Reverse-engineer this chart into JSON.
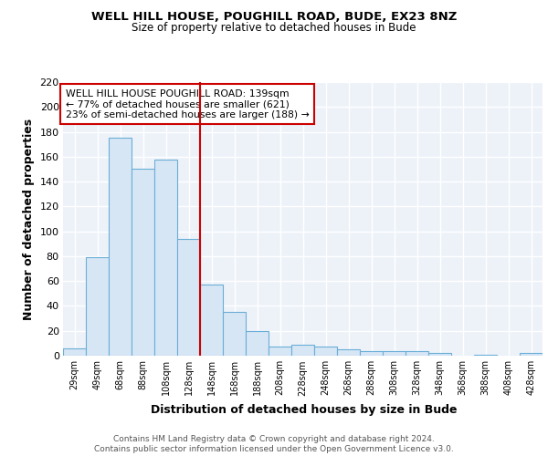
{
  "title1": "WELL HILL HOUSE, POUGHILL ROAD, BUDE, EX23 8NZ",
  "title2": "Size of property relative to detached houses in Bude",
  "xlabel": "Distribution of detached houses by size in Bude",
  "ylabel": "Number of detached properties",
  "categories": [
    "29sqm",
    "49sqm",
    "68sqm",
    "88sqm",
    "108sqm",
    "128sqm",
    "148sqm",
    "168sqm",
    "188sqm",
    "208sqm",
    "228sqm",
    "248sqm",
    "268sqm",
    "288sqm",
    "308sqm",
    "328sqm",
    "348sqm",
    "368sqm",
    "388sqm",
    "408sqm",
    "428sqm"
  ],
  "values": [
    6,
    79,
    175,
    150,
    158,
    94,
    57,
    35,
    20,
    7,
    9,
    7,
    5,
    4,
    4,
    4,
    2,
    0,
    1,
    0,
    2
  ],
  "bar_color": "#d6e6f5",
  "bar_edge_color": "#6aaed6",
  "vline_x": 5.5,
  "vline_color": "#cc0000",
  "ylim": [
    0,
    220
  ],
  "yticks": [
    0,
    20,
    40,
    60,
    80,
    100,
    120,
    140,
    160,
    180,
    200,
    220
  ],
  "annotation_text": "WELL HILL HOUSE POUGHILL ROAD: 139sqm\n← 77% of detached houses are smaller (621)\n23% of semi-detached houses are larger (188) →",
  "annotation_box_color": "#ffffff",
  "annotation_box_edge": "#cc0000",
  "footer": "Contains HM Land Registry data © Crown copyright and database right 2024.\nContains public sector information licensed under the Open Government Licence v3.0.",
  "background_color": "#ffffff",
  "plot_bg_color": "#edf2f9",
  "grid_color": "#ffffff"
}
